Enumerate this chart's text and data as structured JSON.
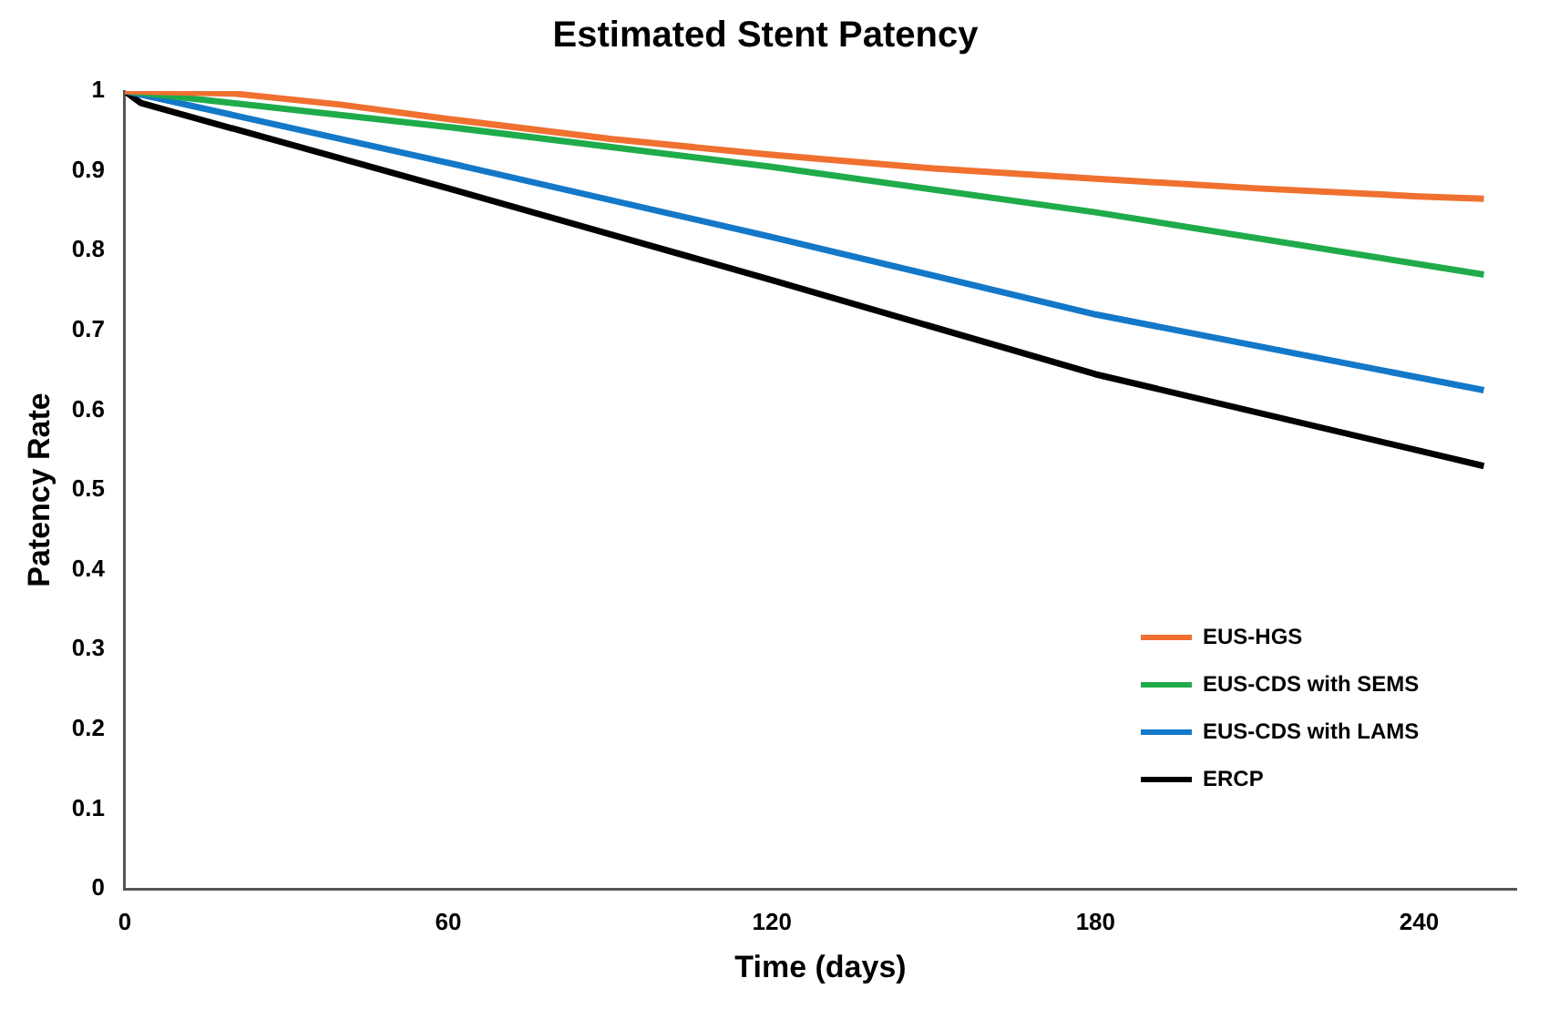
{
  "chart_data": {
    "type": "line",
    "title": "Estimated Stent Patency",
    "xlabel": "Time (days)",
    "ylabel": "Patency Rate",
    "xlim": [
      0,
      258
    ],
    "xticks": [
      0,
      60,
      120,
      180,
      240
    ],
    "ylim": [
      0,
      1
    ],
    "yticks": [
      0,
      0.1,
      0.2,
      0.3,
      0.4,
      0.5,
      0.6,
      0.7,
      0.8,
      0.9,
      1
    ],
    "grid": false,
    "legend": "bottom right",
    "marker": "none",
    "line_style": "solid",
    "series": [
      {
        "name": "EUS-HGS",
        "color": "#f07030",
        "x": [
          0,
          20,
          40,
          60,
          90,
          120,
          150,
          180,
          210,
          240,
          252
        ],
        "values": [
          1,
          0.997,
          0.983,
          0.965,
          0.94,
          0.92,
          0.903,
          0.89,
          0.878,
          0.868,
          0.865
        ]
      },
      {
        "name": "EUS-CDS with SEMS",
        "color": "#1fab4a",
        "x": [
          0,
          60,
          120,
          180,
          252
        ],
        "values": [
          1,
          0.955,
          0.905,
          0.848,
          0.77
        ]
      },
      {
        "name": "EUS-CDS with LAMS",
        "color": "#1478c8",
        "x": [
          0,
          60,
          120,
          180,
          252
        ],
        "values": [
          1,
          0.91,
          0.817,
          0.72,
          0.625
        ]
      },
      {
        "name": "ERCP",
        "color": "#000000",
        "x": [
          0,
          3,
          60,
          120,
          180,
          252
        ],
        "values": [
          1,
          0.985,
          0.878,
          0.763,
          0.645,
          0.53
        ]
      }
    ]
  }
}
